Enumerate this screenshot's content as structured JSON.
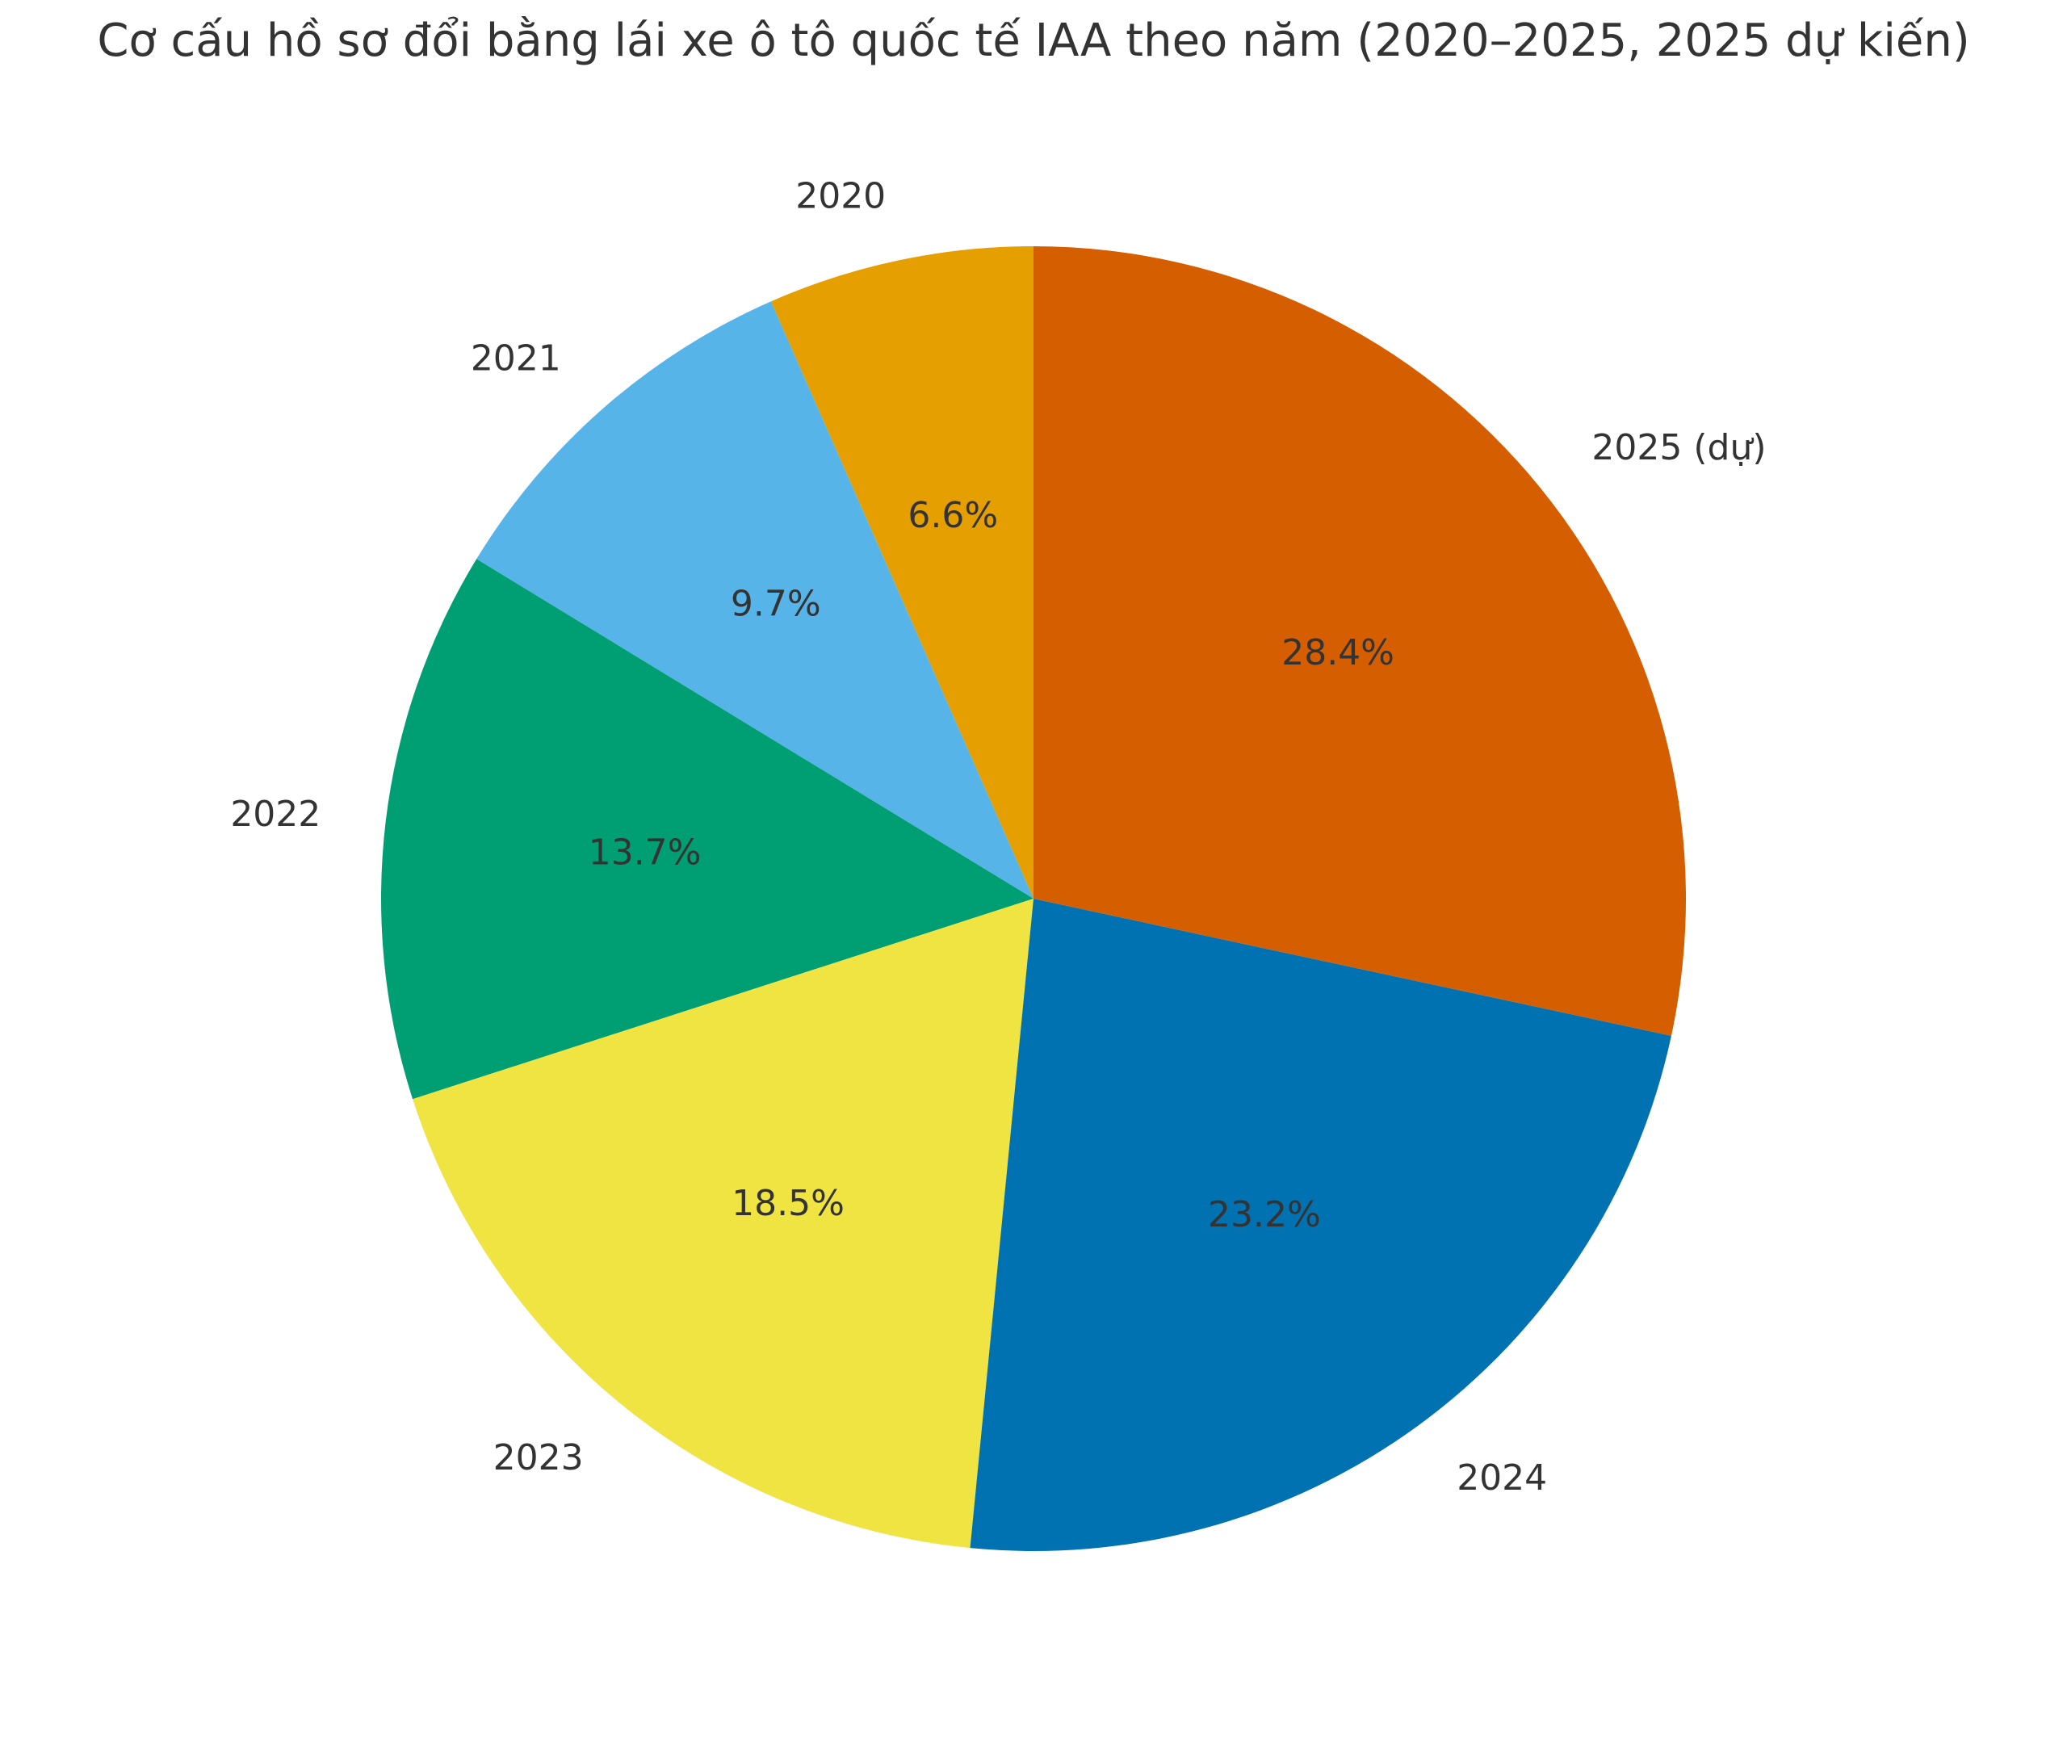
{
  "chart_data": {
    "type": "pie",
    "title": "Cơ cấu hồ sơ đổi bằng lái xe ô tô quốc tế IAA theo năm (2020–2025, 2025 dự kiến)",
    "categories": [
      "2020",
      "2021",
      "2022",
      "2023",
      "2024",
      "2025 (dự)"
    ],
    "values": [
      6.6,
      9.7,
      13.7,
      18.5,
      23.2,
      28.4
    ],
    "pct_labels": [
      "6.6%",
      "9.7%",
      "13.7%",
      "18.5%",
      "23.2%",
      "28.4%"
    ],
    "colors": [
      "#E69F00",
      "#56B4E9",
      "#009E73",
      "#F0E442",
      "#0072B2",
      "#D55E00"
    ],
    "start_angle": 90,
    "counterclock": true,
    "label_distance": 1.1,
    "pct_distance": 0.6,
    "legend": "none",
    "grid": "off",
    "text_color": "#333333",
    "background_color": "#ffffff"
  }
}
